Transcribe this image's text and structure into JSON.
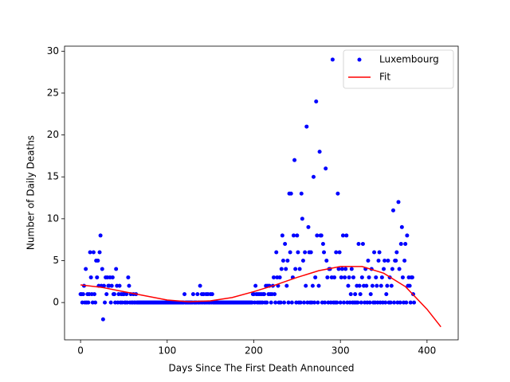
{
  "chart_data": {
    "type": "scatter",
    "xlabel": "Days Since The First Death Announced",
    "ylabel": "Number of Daily Deaths",
    "xlim": [
      -18.5,
      436
    ],
    "ylim": [
      -4.45,
      30.6
    ],
    "xticks": [
      0,
      100,
      200,
      300,
      400
    ],
    "yticks": [
      0,
      5,
      10,
      15,
      20,
      25,
      30
    ],
    "legend": "upper right",
    "series": [
      {
        "name": "Luxembourg",
        "color": "#0000ff",
        "marker": "dot",
        "x": [
          0,
          1,
          2,
          3,
          4,
          5,
          6,
          7,
          8,
          9,
          10,
          11,
          12,
          13,
          14,
          15,
          16,
          17,
          18,
          19,
          20,
          21,
          22,
          23,
          24,
          25,
          26,
          27,
          28,
          29,
          30,
          31,
          32,
          33,
          34,
          35,
          36,
          37,
          38,
          39,
          40,
          41,
          42,
          43,
          44,
          45,
          46,
          47,
          48,
          49,
          50,
          51,
          52,
          53,
          54,
          55,
          56,
          57,
          58,
          59,
          60,
          61,
          62,
          63,
          64,
          65,
          66,
          67,
          68,
          69,
          70,
          71,
          72,
          73,
          74,
          75,
          76,
          77,
          78,
          79,
          80,
          81,
          82,
          83,
          84,
          85,
          86,
          87,
          88,
          89,
          90,
          91,
          92,
          93,
          94,
          95,
          96,
          97,
          98,
          99,
          100,
          101,
          102,
          103,
          104,
          105,
          106,
          107,
          108,
          109,
          110,
          111,
          112,
          113,
          114,
          115,
          116,
          117,
          118,
          119,
          120,
          121,
          122,
          123,
          124,
          125,
          126,
          127,
          128,
          129,
          130,
          131,
          132,
          133,
          134,
          135,
          136,
          137,
          138,
          139,
          140,
          141,
          142,
          143,
          144,
          145,
          146,
          147,
          148,
          149,
          150,
          151,
          152,
          153,
          154,
          155,
          156,
          157,
          158,
          159,
          160,
          161,
          162,
          163,
          164,
          165,
          166,
          167,
          168,
          169,
          170,
          171,
          172,
          173,
          174,
          175,
          176,
          177,
          178,
          179,
          180,
          181,
          182,
          183,
          184,
          185,
          186,
          187,
          188,
          189,
          190,
          191,
          192,
          193,
          194,
          195,
          196,
          197,
          198,
          199,
          200,
          201,
          202,
          203,
          204,
          205,
          206,
          207,
          208,
          209,
          210,
          211,
          212,
          213,
          214,
          215,
          216,
          217,
          218,
          219,
          220,
          221,
          222,
          223,
          224,
          225,
          226,
          227,
          228,
          229,
          230,
          231,
          232,
          233,
          234,
          235,
          236,
          237,
          238,
          239,
          240,
          241,
          242,
          243,
          244,
          245,
          246,
          247,
          248,
          249,
          250,
          251,
          252,
          253,
          254,
          255,
          256,
          257,
          258,
          259,
          260,
          261,
          262,
          263,
          264,
          265,
          266,
          267,
          268,
          269,
          270,
          271,
          272,
          273,
          274,
          275,
          276,
          277,
          278,
          279,
          280,
          281,
          282,
          283,
          284,
          285,
          286,
          287,
          288,
          289,
          290,
          291,
          292,
          293,
          294,
          295,
          296,
          297,
          298,
          299,
          300,
          301,
          302,
          303,
          304,
          305,
          306,
          307,
          308,
          309,
          310,
          311,
          312,
          313,
          314,
          315,
          316,
          317,
          318,
          319,
          320,
          321,
          322,
          323,
          324,
          325,
          326,
          327,
          328,
          329,
          330,
          331,
          332,
          333,
          334,
          335,
          336,
          337,
          338,
          339,
          340,
          341,
          342,
          343,
          344,
          345,
          346,
          347,
          348,
          349,
          350,
          351,
          352,
          353,
          354,
          355,
          356,
          357,
          358,
          359,
          360,
          361,
          362,
          363,
          364,
          365,
          366,
          367,
          368,
          369,
          370,
          371,
          372,
          373,
          374,
          375,
          376,
          377,
          378,
          379,
          380,
          381,
          382,
          383,
          384,
          385
        ],
        "values": [
          1,
          1,
          0,
          1,
          2,
          0,
          4,
          0,
          1,
          0,
          1,
          6,
          3,
          1,
          0,
          6,
          1,
          0,
          5,
          3,
          5,
          2,
          6,
          8,
          2,
          4,
          -2,
          2,
          0,
          3,
          1,
          3,
          2,
          2,
          3,
          0,
          2,
          3,
          1,
          1,
          0,
          4,
          2,
          0,
          1,
          2,
          0,
          1,
          0,
          1,
          1,
          0,
          0,
          1,
          0,
          3,
          2,
          0,
          1,
          0,
          0,
          1,
          0,
          0,
          1,
          0,
          0,
          0,
          0,
          0,
          0,
          0,
          0,
          0,
          0,
          0,
          0,
          0,
          0,
          0,
          0,
          0,
          0,
          0,
          0,
          0,
          0,
          0,
          0,
          0,
          0,
          0,
          0,
          0,
          0,
          0,
          0,
          0,
          0,
          0,
          0,
          0,
          0,
          0,
          0,
          0,
          0,
          0,
          0,
          0,
          0,
          0,
          0,
          0,
          0,
          0,
          0,
          0,
          0,
          0,
          1,
          0,
          0,
          0,
          0,
          0,
          0,
          0,
          0,
          0,
          1,
          0,
          0,
          0,
          0,
          1,
          0,
          0,
          2,
          0,
          1,
          0,
          1,
          0,
          0,
          1,
          0,
          1,
          0,
          0,
          1,
          0,
          1,
          0,
          0,
          0,
          0,
          0,
          0,
          0,
          0,
          0,
          0,
          0,
          0,
          0,
          0,
          0,
          0,
          0,
          0,
          0,
          0,
          0,
          0,
          0,
          0,
          0,
          0,
          0,
          0,
          0,
          0,
          0,
          0,
          0,
          0,
          0,
          0,
          0,
          0,
          0,
          0,
          0,
          0,
          0,
          0,
          0,
          0,
          1,
          1,
          0,
          2,
          1,
          0,
          1,
          0,
          1,
          0,
          1,
          0,
          1,
          1,
          0,
          2,
          0,
          2,
          1,
          2,
          1,
          0,
          1,
          2,
          3,
          1,
          0,
          6,
          3,
          2,
          0,
          3,
          0,
          4,
          8,
          5,
          0,
          7,
          4,
          2,
          5,
          0,
          13,
          6,
          13,
          0,
          3,
          8,
          17,
          4,
          0,
          8,
          6,
          0,
          4,
          0,
          13,
          10,
          5,
          0,
          6,
          2,
          21,
          0,
          9,
          6,
          0,
          6,
          0,
          2,
          15,
          0,
          3,
          24,
          8,
          0,
          2,
          18,
          8,
          8,
          0,
          7,
          6,
          0,
          16,
          5,
          3,
          0,
          4,
          4,
          0,
          3,
          29,
          0,
          3,
          0,
          6,
          0,
          13,
          4,
          6,
          0,
          3,
          4,
          8,
          0,
          3,
          4,
          8,
          0,
          2,
          3,
          0,
          1,
          4,
          0,
          3,
          0,
          1,
          0,
          2,
          0,
          7,
          2,
          1,
          0,
          3,
          7,
          2,
          0,
          4,
          2,
          0,
          5,
          3,
          0,
          1,
          4,
          2,
          0,
          6,
          0,
          3,
          2,
          0,
          5,
          6,
          0,
          2,
          3,
          0,
          4,
          5,
          0,
          1,
          2,
          5,
          0,
          3,
          0,
          2,
          4,
          11,
          0,
          5,
          5,
          6,
          0,
          12,
          4,
          0,
          7,
          9,
          3,
          0,
          5,
          7,
          0,
          8,
          2,
          3,
          2,
          0,
          3,
          3,
          1,
          0
        ]
      },
      {
        "name": "Fit",
        "color": "#ff0000",
        "marker": "line",
        "x": [
          0,
          25,
          50,
          75,
          100,
          125,
          150,
          175,
          200,
          225,
          250,
          275,
          300,
          325,
          350,
          375,
          400,
          416
        ],
        "values": [
          2.1,
          1.8,
          1.3,
          0.8,
          0.3,
          0.1,
          0.2,
          0.6,
          1.3,
          2.1,
          3.0,
          3.8,
          4.3,
          4.3,
          3.5,
          1.9,
          -0.8,
          -2.9
        ]
      }
    ]
  }
}
